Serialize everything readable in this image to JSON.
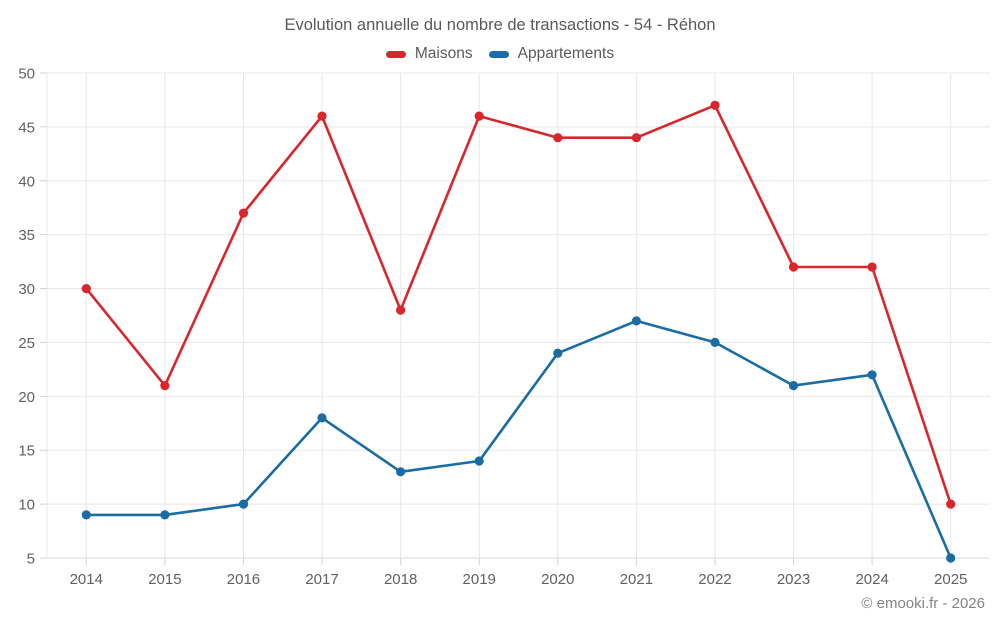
{
  "title": "Evolution annuelle du nombre de transactions - 54 - Réhon",
  "footer": "© emooki.fr - 2026",
  "legend": {
    "items": [
      {
        "label": "Maisons",
        "color": "#d9262c"
      },
      {
        "label": "Appartements",
        "color": "#1a6ca4"
      }
    ]
  },
  "chart_data": {
    "type": "line",
    "title": "Evolution annuelle du nombre de transactions - 54 - Réhon",
    "categories": [
      "2014",
      "2015",
      "2016",
      "2017",
      "2018",
      "2019",
      "2020",
      "2021",
      "2022",
      "2023",
      "2024",
      "2025"
    ],
    "series": [
      {
        "name": "Maisons",
        "color": "#d9262c",
        "values": [
          30,
          21,
          37,
          46,
          28,
          46,
          44,
          44,
          47,
          32,
          32,
          10
        ]
      },
      {
        "name": "Appartements",
        "color": "#1a6ca4",
        "values": [
          9,
          9,
          10,
          18,
          13,
          14,
          24,
          27,
          25,
          21,
          22,
          5
        ]
      }
    ],
    "xlabel": "",
    "ylabel": "",
    "ylim": [
      5,
      50
    ],
    "yticks": [
      5,
      10,
      15,
      20,
      25,
      30,
      35,
      40,
      45,
      50
    ],
    "grid": true,
    "legend_position": "top"
  },
  "colors": {
    "background": "#ffffff",
    "grid": "#e8e8e8",
    "axis_line": "#d9d9d9",
    "tick": "#d2d2d2",
    "tick_label": "#616161",
    "title_text": "#5a5a5a",
    "footer_text": "#848484"
  }
}
